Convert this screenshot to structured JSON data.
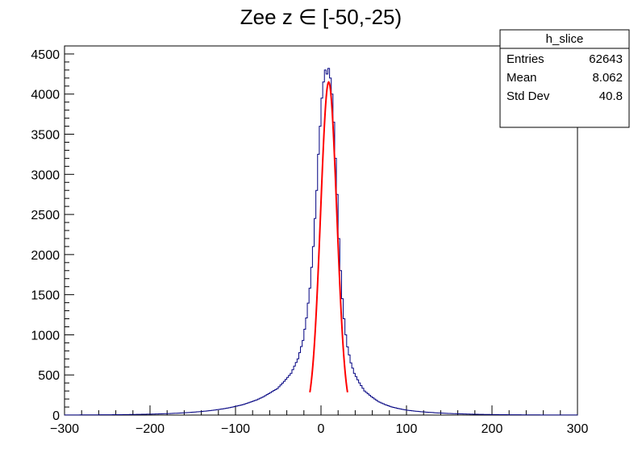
{
  "chart_data": {
    "type": "bar",
    "title": "Zee z ∈ [-50,-25)",
    "xlabel": "",
    "ylabel": "",
    "xlim": [
      -300,
      300
    ],
    "ylim": [
      0,
      4600
    ],
    "x_ticks": [
      -300,
      -200,
      -100,
      0,
      100,
      200,
      300
    ],
    "y_ticks": [
      0,
      500,
      1000,
      1500,
      2000,
      2500,
      3000,
      3500,
      4000,
      4500
    ],
    "series": [
      {
        "name": "h_slice",
        "color": "#000080",
        "bin_width": 2,
        "bin_centers": [
          -99,
          -91,
          -83,
          -75,
          -67,
          -59,
          -51,
          -43,
          -35,
          -27,
          -21,
          -17,
          -13,
          -9,
          -5,
          -3,
          -1,
          1,
          3,
          5,
          7,
          9,
          11,
          13,
          15,
          17,
          19,
          21,
          23,
          25,
          27,
          29,
          31,
          35,
          39,
          45,
          51,
          59,
          67,
          75,
          83,
          91,
          101
        ],
        "values": [
          110,
          130,
          160,
          190,
          230,
          280,
          330,
          420,
          520,
          700,
          930,
          1210,
          1580,
          2100,
          2800,
          3250,
          3600,
          3950,
          4150,
          4300,
          4250,
          4320,
          4200,
          4000,
          3650,
          3200,
          2750,
          2200,
          1800,
          1450,
          1200,
          1000,
          850,
          650,
          520,
          400,
          300,
          230,
          170,
          130,
          100,
          80,
          60
        ]
      },
      {
        "name": "gaussian-fit",
        "color": "#ff0000",
        "type": "line",
        "mean": 9,
        "sigma": 9.5,
        "amplitude": 4150,
        "range": [
          -13,
          31
        ]
      }
    ],
    "stats_box": {
      "title": "h_slice",
      "rows": [
        {
          "label": "Entries",
          "value": "62643"
        },
        {
          "label": "Mean",
          "value": "8.062"
        },
        {
          "label": "Std Dev",
          "value": "40.8"
        }
      ]
    }
  }
}
